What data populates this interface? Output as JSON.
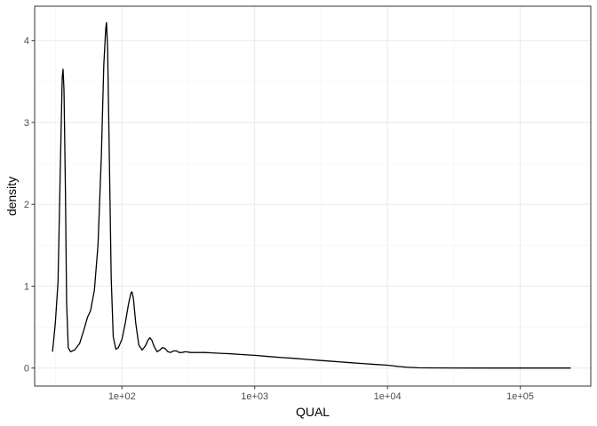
{
  "chart_data": {
    "type": "line",
    "title": "",
    "xlabel": "QUAL",
    "ylabel": "density",
    "x_scale": "log10",
    "xlim": [
      22,
      340000
    ],
    "ylim": [
      -0.22,
      4.42
    ],
    "x_ticks": [
      {
        "value": 100,
        "label": "1e+02"
      },
      {
        "value": 1000,
        "label": "1e+03"
      },
      {
        "value": 10000,
        "label": "1e+04"
      },
      {
        "value": 100000,
        "label": "1e+05"
      }
    ],
    "x_minor_ticks": [
      31.6,
      316,
      3162,
      31623,
      316228
    ],
    "y_ticks": [
      {
        "value": 0,
        "label": "0"
      },
      {
        "value": 1,
        "label": "1"
      },
      {
        "value": 2,
        "label": "2"
      },
      {
        "value": 3,
        "label": "3"
      },
      {
        "value": 4,
        "label": "4"
      }
    ],
    "y_minor_ticks": [
      0.5,
      1.5,
      2.5,
      3.5
    ],
    "grid": true,
    "theme": "bw",
    "colors": {
      "line": "#000000",
      "grid": "#ebebeb",
      "panel_border": "#333333"
    },
    "series": [
      {
        "points": [
          [
            30,
            0.2
          ],
          [
            31.5,
            0.55
          ],
          [
            33,
            1.05
          ],
          [
            34.3,
            2.4
          ],
          [
            35.5,
            3.55
          ],
          [
            36,
            3.65
          ],
          [
            36.6,
            3.4
          ],
          [
            37.5,
            2.2
          ],
          [
            38.3,
            0.8
          ],
          [
            39.4,
            0.25
          ],
          [
            41,
            0.2
          ],
          [
            44,
            0.22
          ],
          [
            48,
            0.3
          ],
          [
            52,
            0.48
          ],
          [
            55,
            0.62
          ],
          [
            58,
            0.7
          ],
          [
            62,
            0.95
          ],
          [
            66,
            1.5
          ],
          [
            70,
            2.6
          ],
          [
            73,
            3.7
          ],
          [
            75.5,
            4.15
          ],
          [
            76.5,
            4.22
          ],
          [
            78,
            3.9
          ],
          [
            80.5,
            2.5
          ],
          [
            83,
            1.1
          ],
          [
            86,
            0.38
          ],
          [
            90,
            0.23
          ],
          [
            94,
            0.25
          ],
          [
            100,
            0.35
          ],
          [
            106,
            0.55
          ],
          [
            112,
            0.78
          ],
          [
            117,
            0.92
          ],
          [
            119,
            0.93
          ],
          [
            122,
            0.85
          ],
          [
            127,
            0.55
          ],
          [
            134,
            0.28
          ],
          [
            142,
            0.22
          ],
          [
            150,
            0.27
          ],
          [
            157,
            0.34
          ],
          [
            162,
            0.37
          ],
          [
            168,
            0.34
          ],
          [
            175,
            0.26
          ],
          [
            184,
            0.2
          ],
          [
            193,
            0.22
          ],
          [
            202,
            0.25
          ],
          [
            211,
            0.24
          ],
          [
            222,
            0.2
          ],
          [
            232,
            0.19
          ],
          [
            245,
            0.21
          ],
          [
            257,
            0.21
          ],
          [
            270,
            0.19
          ],
          [
            285,
            0.19
          ],
          [
            300,
            0.2
          ],
          [
            330,
            0.19
          ],
          [
            370,
            0.19
          ],
          [
            420,
            0.19
          ],
          [
            480,
            0.185
          ],
          [
            550,
            0.18
          ],
          [
            650,
            0.175
          ],
          [
            800,
            0.165
          ],
          [
            1000,
            0.155
          ],
          [
            1300,
            0.14
          ],
          [
            1600,
            0.128
          ],
          [
            2000,
            0.118
          ],
          [
            2500,
            0.105
          ],
          [
            3000,
            0.095
          ],
          [
            4000,
            0.08
          ],
          [
            5000,
            0.068
          ],
          [
            6500,
            0.055
          ],
          [
            8000,
            0.045
          ],
          [
            10000,
            0.035
          ],
          [
            12000,
            0.02
          ],
          [
            14000,
            0.01
          ],
          [
            17000,
            0.004
          ],
          [
            20000,
            0.002
          ],
          [
            30000,
            0.001
          ],
          [
            60000,
            0.0
          ],
          [
            120000,
            0.0
          ],
          [
            240000,
            0.0
          ]
        ]
      }
    ]
  }
}
